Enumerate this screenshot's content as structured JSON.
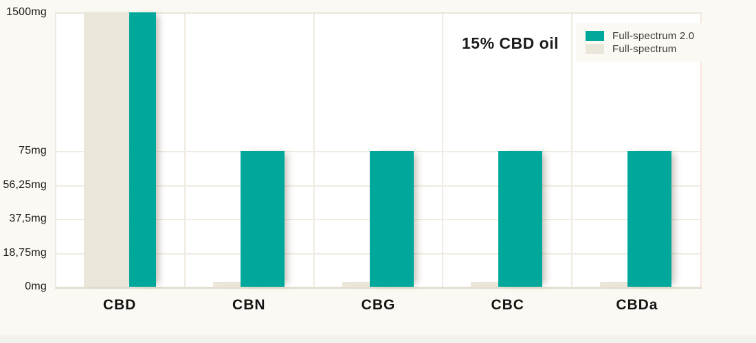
{
  "chart": {
    "annotation": "15% CBD oil",
    "y_axis_ticks": [
      {
        "label": "1500mg",
        "value": 1500
      },
      {
        "label": "75mg",
        "value": 75
      },
      {
        "label": "56,25mg",
        "value": 56.25
      },
      {
        "label": "37,5mg",
        "value": 37.5
      },
      {
        "label": "18,75mg",
        "value": 18.75
      },
      {
        "label": "0mg",
        "value": 0
      }
    ],
    "categories": [
      "CBD",
      "CBN",
      "CBG",
      "CBC",
      "CBDa"
    ]
  },
  "legend": {
    "items": [
      {
        "label": "Full-spectrum 2.0",
        "color": "#00a89b"
      },
      {
        "label": "Full-spectrum",
        "color": "#eae6da"
      }
    ]
  },
  "chart_data": {
    "type": "bar",
    "title": "15% CBD oil",
    "categories": [
      "CBD",
      "CBN",
      "CBG",
      "CBC",
      "CBDa"
    ],
    "series": [
      {
        "name": "Full-spectrum 2.0",
        "color": "#00a89b",
        "values": [
          1500,
          75,
          75,
          75,
          75
        ]
      },
      {
        "name": "Full-spectrum",
        "color": "#eae6da",
        "values": [
          1500,
          2.5,
          2.5,
          2.5,
          2.5
        ]
      }
    ],
    "xlabel": "",
    "ylabel": "",
    "y_unit": "mg",
    "y_ticks": [
      0,
      18.75,
      37.5,
      56.25,
      75,
      1500
    ],
    "axis_scale_note": "broken y-scale: 0-75mg region is linear, 75-1500mg region is compressed",
    "grid": true,
    "legend_position": "top-right"
  },
  "colors": {
    "background": "#fbf9f4",
    "plot_background": "#ffffff",
    "gridline": "#f0ebe2",
    "baseline": "#e5dfd2",
    "accent_teal": "#00a89b",
    "accent_beige": "#eae6da",
    "text": "#1d1d1b"
  }
}
